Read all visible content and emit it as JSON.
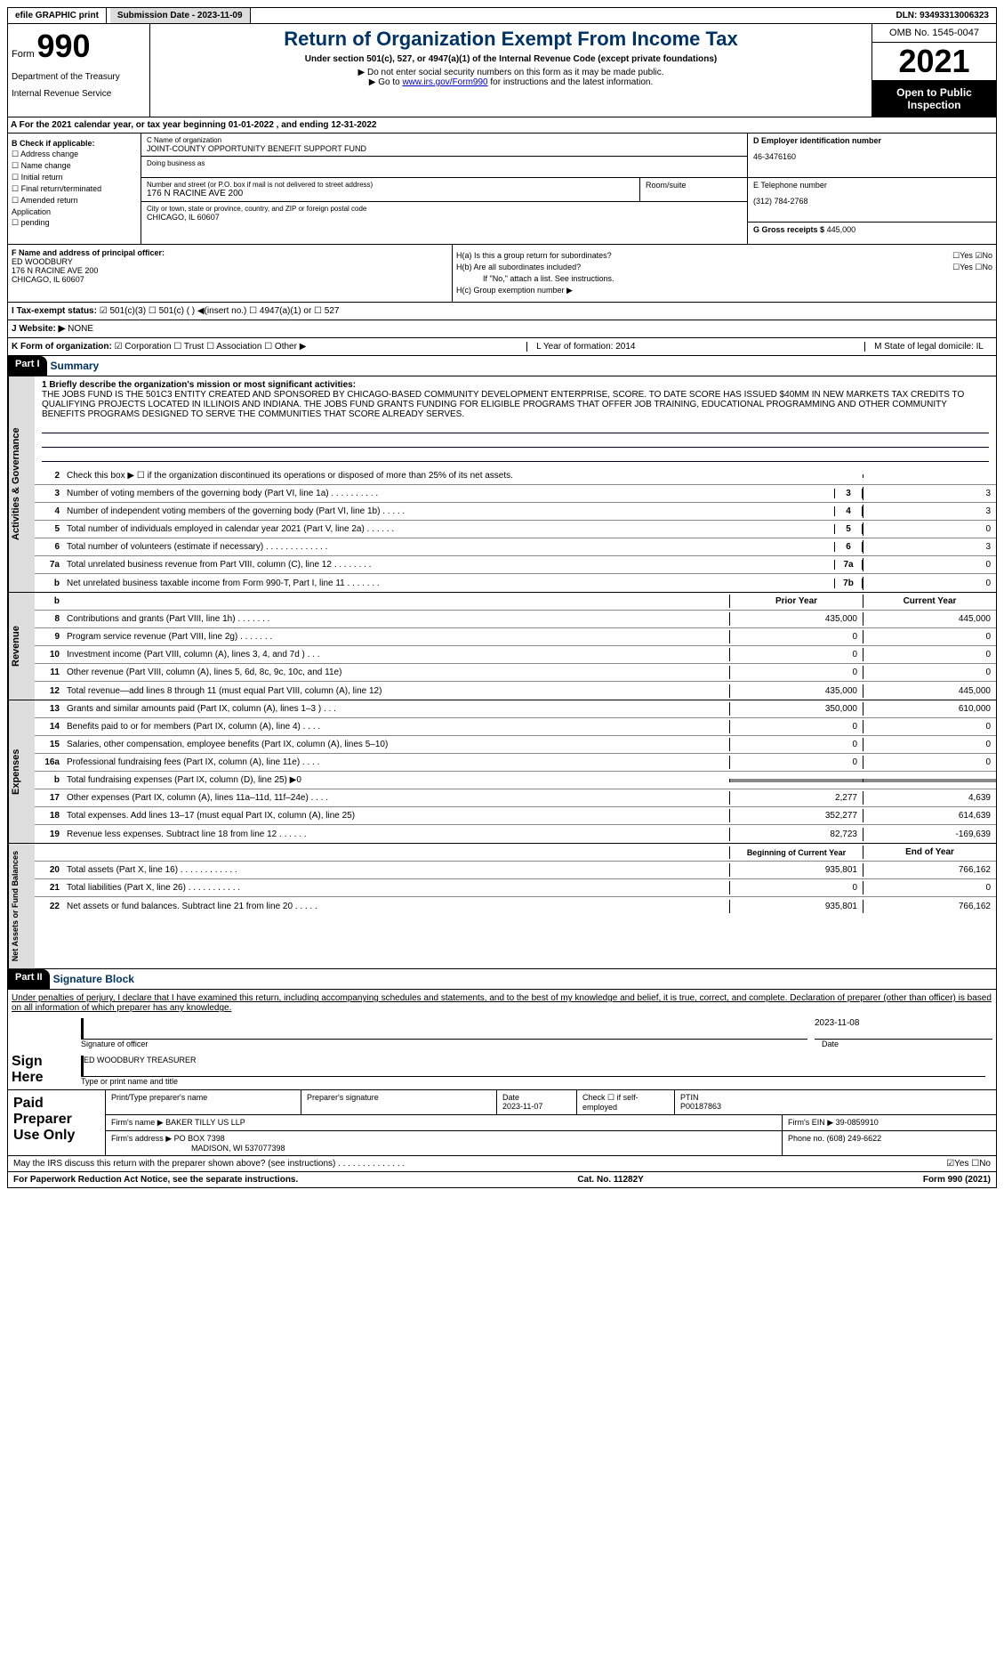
{
  "topbar": {
    "efile": "efile GRAPHIC print",
    "submission": "Submission Date - 2023-11-09",
    "dln": "DLN: 93493313006323"
  },
  "header": {
    "form_label": "Form",
    "form_num": "990",
    "dept": "Department of the Treasury",
    "irs": "Internal Revenue Service",
    "title": "Return of Organization Exempt From Income Tax",
    "subtitle": "Under section 501(c), 527, or 4947(a)(1) of the Internal Revenue Code (except private foundations)",
    "instr1": "▶ Do not enter social security numbers on this form as it may be made public.",
    "instr2_pre": "▶ Go to ",
    "instr2_link": "www.irs.gov/Form990",
    "instr2_post": " for instructions and the latest information.",
    "omb": "OMB No. 1545-0047",
    "year": "2021",
    "open_pub": "Open to Public Inspection"
  },
  "row_a": "A For the 2021 calendar year, or tax year beginning 01-01-2022   , and ending 12-31-2022",
  "col_b": {
    "header": "B Check if applicable:",
    "items": [
      "☐ Address change",
      "☐ Name change",
      "☐ Initial return",
      "☐ Final return/terminated",
      "☐ Amended return",
      "   Application",
      "☐ pending"
    ]
  },
  "col_c": {
    "name_label": "C Name of organization",
    "name": "JOINT-COUNTY OPPORTUNITY BENEFIT SUPPORT FUND",
    "dba_label": "Doing business as",
    "addr_label": "Number and street (or P.O. box if mail is not delivered to street address)",
    "addr": "176 N RACINE AVE 200",
    "room_label": "Room/suite",
    "city_label": "City or town, state or province, country, and ZIP or foreign postal code",
    "city": "CHICAGO, IL  60607"
  },
  "col_d": {
    "ein_label": "D Employer identification number",
    "ein": "46-3476160",
    "phone_label": "E Telephone number",
    "phone": "(312) 784-2768",
    "gross_label": "G Gross receipts $",
    "gross": "445,000"
  },
  "col_f": {
    "label": "F  Name and address of principal officer:",
    "name": "ED WOODBURY",
    "addr1": "176 N RACINE AVE 200",
    "addr2": "CHICAGO, IL  60607"
  },
  "col_h": {
    "ha": "H(a)  Is this a group return for subordinates?",
    "ha_ans": "☐Yes ☑No",
    "hb": "H(b)  Are all subordinates included?",
    "hb_ans": "☐Yes ☐No",
    "hb_note": "If \"No,\" attach a list. See instructions.",
    "hc": "H(c)  Group exemption number ▶"
  },
  "row_i": {
    "label": "I   Tax-exempt status:",
    "opts": "☑ 501(c)(3)   ☐  501(c) (  ) ◀(insert no.)     ☐ 4947(a)(1) or   ☐ 527"
  },
  "row_j": {
    "label": "J   Website: ▶",
    "val": "NONE"
  },
  "row_k": {
    "label": "K Form of organization:",
    "opts": "☑ Corporation ☐ Trust ☐ Association ☐ Other ▶",
    "l": "L Year of formation: 2014",
    "m": "M State of legal domicile: IL"
  },
  "part1": {
    "hdr": "Part I",
    "title": "Summary"
  },
  "summary": {
    "line1_label": "1  Briefly describe the organization's mission or most significant activities:",
    "mission": "THE JOBS FUND IS THE 501C3 ENTITY CREATED AND SPONSORED BY CHICAGO-BASED COMMUNITY DEVELOPMENT ENTERPRISE, SCORE. TO DATE SCORE HAS ISSUED $40MM IN NEW MARKETS TAX CREDITS TO QUALIFYING PROJECTS LOCATED IN ILLINOIS AND INDIANA. THE JOBS FUND GRANTS FUNDING FOR ELIGIBLE PROGRAMS THAT OFFER JOB TRAINING, EDUCATIONAL PROGRAMMING AND OTHER COMMUNITY BENEFITS PROGRAMS DESIGNED TO SERVE THE COMMUNITIES THAT SCORE ALREADY SERVES."
  },
  "gov_lines": [
    {
      "n": "2",
      "t": "Check this box ▶ ☐  if the organization discontinued its operations or disposed of more than 25% of its net assets.",
      "r": "",
      "v": ""
    },
    {
      "n": "3",
      "t": "Number of voting members of the governing body (Part VI, line 1a)  .  .  .  .  .  .  .  .  .  .",
      "r": "3",
      "v": "3"
    },
    {
      "n": "4",
      "t": "Number of independent voting members of the governing body (Part VI, line 1b)  .  .  .  .  .",
      "r": "4",
      "v": "3"
    },
    {
      "n": "5",
      "t": "Total number of individuals employed in calendar year 2021 (Part V, line 2a)  .  .  .  .  .  .",
      "r": "5",
      "v": "0"
    },
    {
      "n": "6",
      "t": "Total number of volunteers (estimate if necessary)  .  .  .  .  .  .  .  .  .  .  .  .  .",
      "r": "6",
      "v": "3"
    },
    {
      "n": "7a",
      "t": "Total unrelated business revenue from Part VIII, column (C), line 12  .  .  .  .  .  .  .  .",
      "r": "7a",
      "v": "0"
    },
    {
      "n": "b",
      "t": "Net unrelated business taxable income from Form 990-T, Part I, line 11  .  .  .  .  .  .  .",
      "r": "7b",
      "v": "0"
    }
  ],
  "rev_hdr": {
    "py": "Prior Year",
    "cy": "Current Year"
  },
  "rev_lines": [
    {
      "n": "8",
      "t": "Contributions and grants (Part VIII, line 1h)  .  .  .  .  .  .  .",
      "py": "435,000",
      "cy": "445,000"
    },
    {
      "n": "9",
      "t": "Program service revenue (Part VIII, line 2g)  .  .  .  .  .  .  .",
      "py": "0",
      "cy": "0"
    },
    {
      "n": "10",
      "t": "Investment income (Part VIII, column (A), lines 3, 4, and 7d )  .  .  .",
      "py": "0",
      "cy": "0"
    },
    {
      "n": "11",
      "t": "Other revenue (Part VIII, column (A), lines 5, 6d, 8c, 9c, 10c, and 11e)",
      "py": "0",
      "cy": "0"
    },
    {
      "n": "12",
      "t": "Total revenue—add lines 8 through 11 (must equal Part VIII, column (A), line 12)",
      "py": "435,000",
      "cy": "445,000"
    }
  ],
  "exp_lines": [
    {
      "n": "13",
      "t": "Grants and similar amounts paid (Part IX, column (A), lines 1–3 )  .  .  .",
      "py": "350,000",
      "cy": "610,000"
    },
    {
      "n": "14",
      "t": "Benefits paid to or for members (Part IX, column (A), line 4)  .  .  .  .",
      "py": "0",
      "cy": "0"
    },
    {
      "n": "15",
      "t": "Salaries, other compensation, employee benefits (Part IX, column (A), lines 5–10)",
      "py": "0",
      "cy": "0"
    },
    {
      "n": "16a",
      "t": "Professional fundraising fees (Part IX, column (A), line 11e)  .  .  .  .",
      "py": "0",
      "cy": "0"
    },
    {
      "n": "b",
      "t": "Total fundraising expenses (Part IX, column (D), line 25) ▶0",
      "py": "gray",
      "cy": "gray"
    },
    {
      "n": "17",
      "t": "Other expenses (Part IX, column (A), lines 11a–11d, 11f–24e)  .  .  .  .",
      "py": "2,277",
      "cy": "4,639"
    },
    {
      "n": "18",
      "t": "Total expenses. Add lines 13–17 (must equal Part IX, column (A), line 25)",
      "py": "352,277",
      "cy": "614,639"
    },
    {
      "n": "19",
      "t": "Revenue less expenses. Subtract line 18 from line 12  .  .  .  .  .  .",
      "py": "82,723",
      "cy": "-169,639"
    }
  ],
  "na_hdr": {
    "py": "Beginning of Current Year",
    "cy": "End of Year"
  },
  "na_lines": [
    {
      "n": "20",
      "t": "Total assets (Part X, line 16)  .  .  .  .  .  .  .  .  .  .  .  .",
      "py": "935,801",
      "cy": "766,162"
    },
    {
      "n": "21",
      "t": "Total liabilities (Part X, line 26)  .  .  .  .  .  .  .  .  .  .  .",
      "py": "0",
      "cy": "0"
    },
    {
      "n": "22",
      "t": "Net assets or fund balances. Subtract line 21 from line 20  .  .  .  .  .",
      "py": "935,801",
      "cy": "766,162"
    }
  ],
  "part2": {
    "hdr": "Part II",
    "title": "Signature Block"
  },
  "sig": {
    "decl": "Under penalties of perjury, I declare that I have examined this return, including accompanying schedules and statements, and to the best of my knowledge and belief, it is true, correct, and complete. Declaration of preparer (other than officer) is based on all information of which preparer has any knowledge.",
    "sign_here": "Sign Here",
    "sig_of_officer": "Signature of officer",
    "date_label": "Date",
    "date": "2023-11-08",
    "officer": "ED WOODBURY TREASURER",
    "type_name": "Type or print name and title"
  },
  "prep": {
    "label": "Paid Preparer Use Only",
    "col1": "Print/Type preparer's name",
    "col2": "Preparer's signature",
    "col3_label": "Date",
    "col3": "2023-11-07",
    "col4": "Check ☐  if self-employed",
    "col5_label": "PTIN",
    "col5": "P00187863",
    "firm_label": "Firm's name     ▶",
    "firm": "BAKER TILLY US LLP",
    "ein_label": "Firm's EIN ▶",
    "ein": "39-0859910",
    "addr_label": "Firm's address ▶",
    "addr1": "PO BOX 7398",
    "addr2": "MADISON, WI  537077398",
    "phone_label": "Phone no.",
    "phone": "(608) 249-6622"
  },
  "footer": {
    "q": "May the IRS discuss this return with the preparer shown above? (see instructions)  .  .  .  .  .  .  .  .  .  .  .  .  .  .",
    "ans": "☑Yes  ☐No",
    "pra": "For Paperwork Reduction Act Notice, see the separate instructions.",
    "cat": "Cat. No. 11282Y",
    "form": "Form 990 (2021)"
  },
  "vtabs": {
    "gov": "Activities & Governance",
    "rev": "Revenue",
    "exp": "Expenses",
    "na": "Net Assets or Fund Balances"
  }
}
